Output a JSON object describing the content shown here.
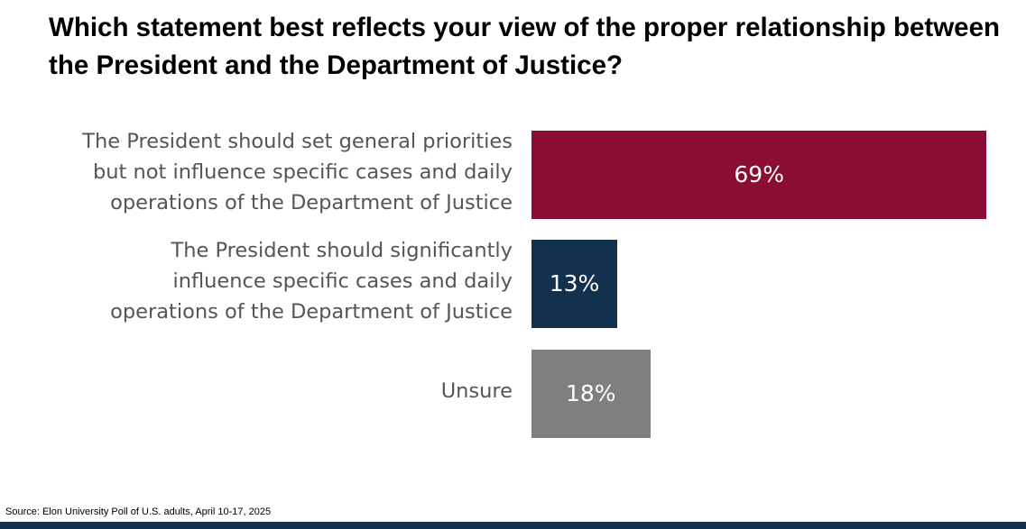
{
  "title": "Which statement best reflects your view of the proper relationship between the President and the Department of Justice?",
  "source": "Source: Elon University Poll of U.S. adults, April 10-17, 2025",
  "chart_data": {
    "type": "bar",
    "orientation": "horizontal",
    "title": "Which statement best reflects your view of the proper relationship between the President and the Department of Justice?",
    "categories": [
      "The President should set general priorities but not influence specific cases and daily operations of the Department of Justice",
      "The President should significantly influence specific cases and daily operations of the Department of Justice",
      "Unsure"
    ],
    "category_lines": [
      [
        "The President should set general priorities",
        "but not influence specific cases and daily",
        "operations of the Department of Justice"
      ],
      [
        "The President should significantly",
        "influence specific cases and daily",
        "operations of the Department of Justice"
      ],
      [
        "Unsure"
      ]
    ],
    "values": [
      69,
      13,
      18
    ],
    "data_labels": [
      "69%",
      "13%",
      "18%"
    ],
    "colors": [
      "#8b0d33",
      "#12314f",
      "#7f7f7f"
    ],
    "xlim": [
      0,
      100
    ],
    "xlabel": "",
    "ylabel": "",
    "grid": false,
    "legend": "none"
  }
}
